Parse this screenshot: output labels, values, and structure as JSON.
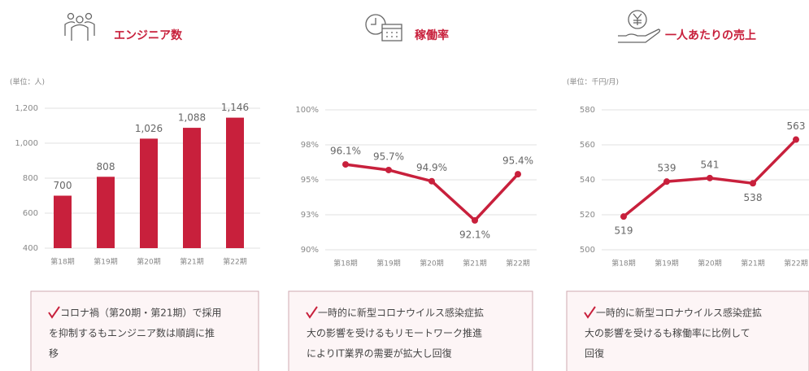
{
  "chart_data": [
    {
      "type": "bar",
      "title": "エンジニア数",
      "unit": "(単位：人)",
      "categories": [
        "第18期",
        "第19期",
        "第20期",
        "第21期",
        "第22期"
      ],
      "values": [
        700,
        808,
        1026,
        1088,
        1146
      ],
      "value_labels": [
        "700",
        "808",
        "1,026",
        "1,088",
        "1,146"
      ],
      "color": "#c8203c",
      "ylim": [
        400,
        1200
      ],
      "yticks": [
        400,
        600,
        800,
        {
          "value": 1000,
          "label": "1,000"
        },
        {
          "value": 1200,
          "label": "1,200"
        }
      ],
      "grid": true,
      "note": [
        "コロナ禍（第20期・第21期）で採用",
        "を抑制するもエンジニア数は順調に推",
        "移"
      ]
    },
    {
      "type": "line",
      "title": "稼働率",
      "categories": [
        "第18期",
        "第19期",
        "第20期",
        "第21期",
        "第22期"
      ],
      "values": [
        96.1,
        95.7,
        94.9,
        92.1,
        95.4
      ],
      "value_labels": [
        "96.1%",
        "95.7%",
        "94.9%",
        "92.1%",
        "95.4%"
      ],
      "color": "#c8203c",
      "ylim": [
        90,
        100
      ],
      "yticks": [
        {
          "value": 90,
          "label": "90%"
        },
        {
          "value": 92.5,
          "label": "93%"
        },
        {
          "value": 95,
          "label": "95%"
        },
        {
          "value": 97.5,
          "label": "98%"
        },
        {
          "value": 100,
          "label": "100%"
        }
      ],
      "grid": true,
      "note": [
        "一時的に新型コロナウイルス感染症拡",
        "大の影響を受けるもリモートワーク推進",
        "によりIT業界の需要が拡大し回復"
      ]
    },
    {
      "type": "line",
      "title": "一人あたりの売上",
      "unit": "(単位：千円/月)",
      "categories": [
        "第18期",
        "第19期",
        "第20期",
        "第21期",
        "第22期"
      ],
      "values": [
        519,
        539,
        541,
        538,
        563
      ],
      "color": "#c8203c",
      "ylim": [
        500,
        580
      ],
      "yticks": [
        500,
        520,
        540,
        560,
        580
      ],
      "grid": true,
      "note": [
        "一時的に新型コロナウイルス感染症拡",
        "大の影響を受けるも稼働率に比例して",
        "回復"
      ]
    }
  ]
}
